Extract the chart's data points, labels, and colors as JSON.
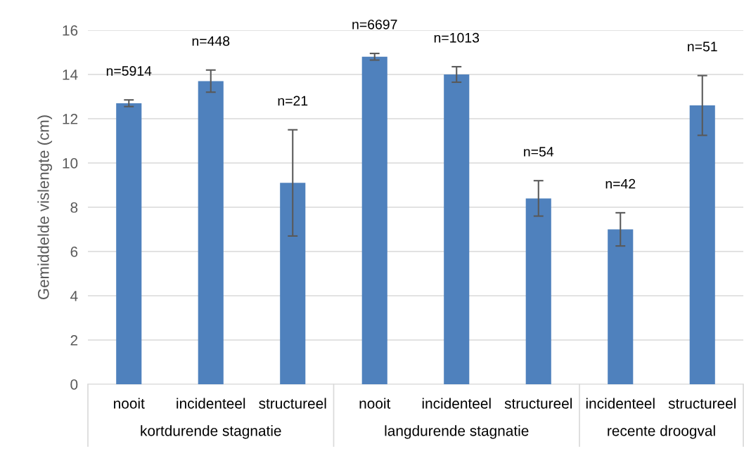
{
  "chart_data": {
    "type": "bar",
    "ylabel": "Gemiddelde vislengte (cm)",
    "categories": [
      "nooit",
      "incidenteel",
      "structureel",
      "nooit",
      "incidenteel",
      "structureel",
      "incidenteel",
      "structureel"
    ],
    "values": [
      12.7,
      13.7,
      9.1,
      14.8,
      14.0,
      8.4,
      7.0,
      12.6
    ],
    "errors": [
      0.15,
      0.5,
      2.4,
      0.15,
      0.35,
      0.8,
      0.75,
      1.35
    ],
    "color": "#4f81bd",
    "ylim": [
      0,
      16
    ],
    "yticks": [
      0,
      2,
      4,
      6,
      8,
      10,
      12,
      14,
      16
    ],
    "grid": "y",
    "annotations": [
      "n=5914",
      "n=448",
      "n=21",
      "n=6697",
      "n=1013",
      "n=54",
      "n=42",
      "n=51",
      "kortdurende stagnatie",
      "langdurende stagnatie",
      "recente droogval"
    ]
  }
}
